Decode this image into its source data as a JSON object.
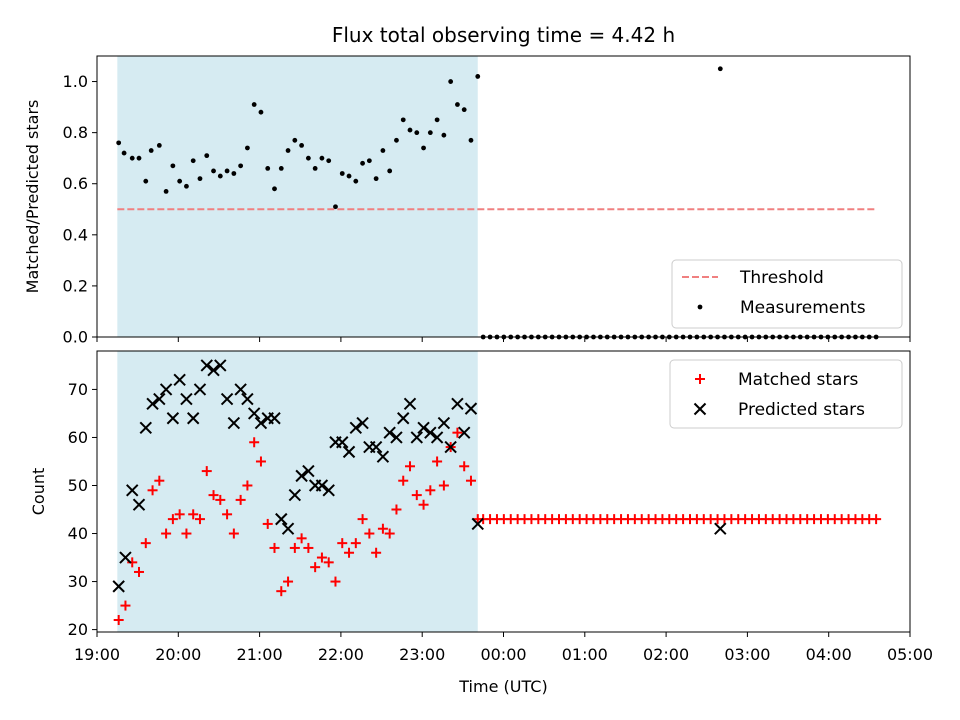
{
  "chart_data": [
    {
      "type": "scatter",
      "title": "Flux total observing time = 4.42 h",
      "xlabel": "",
      "ylabel": "Matched/Predicted stars",
      "xlim": [
        "19:00",
        "05:00"
      ],
      "ylim": [
        0,
        1.1
      ],
      "yticks": [
        "0.0",
        "0.2",
        "0.4",
        "0.6",
        "0.8",
        "1.0"
      ],
      "shaded_region": {
        "start": "19:15",
        "end": "23:41",
        "color": "#add8e6"
      },
      "legend_position": "lower-right",
      "series": [
        {
          "name": "Threshold",
          "style": "dashed-line",
          "color": "#f08080",
          "x": [
            "19:15",
            "04:35"
          ],
          "y": [
            0.5,
            0.5
          ]
        },
        {
          "name": "Measurements",
          "style": "dot",
          "color": "#000000",
          "x": [
            "19:16",
            "19:20",
            "19:26",
            "19:31",
            "19:36",
            "19:40",
            "19:46",
            "19:51",
            "19:56",
            "20:01",
            "20:06",
            "20:11",
            "20:16",
            "20:21",
            "20:26",
            "20:31",
            "20:36",
            "20:41",
            "20:46",
            "20:51",
            "20:56",
            "21:01",
            "21:06",
            "21:11",
            "21:16",
            "21:21",
            "21:26",
            "21:31",
            "21:36",
            "21:41",
            "21:46",
            "21:51",
            "21:56",
            "22:01",
            "22:06",
            "22:11",
            "22:16",
            "22:21",
            "22:26",
            "22:31",
            "22:36",
            "22:41",
            "22:46",
            "22:51",
            "22:56",
            "23:01",
            "23:06",
            "23:11",
            "23:16",
            "23:21",
            "23:26",
            "23:31",
            "23:36",
            "23:41",
            "02:40"
          ],
          "y": [
            0.76,
            0.72,
            0.7,
            0.7,
            0.61,
            0.73,
            0.75,
            0.57,
            0.67,
            0.61,
            0.59,
            0.69,
            0.62,
            0.71,
            0.65,
            0.63,
            0.65,
            0.64,
            0.67,
            0.74,
            0.91,
            0.88,
            0.66,
            0.58,
            0.66,
            0.73,
            0.77,
            0.75,
            0.7,
            0.66,
            0.7,
            0.69,
            0.51,
            0.64,
            0.63,
            0.61,
            0.68,
            0.69,
            0.62,
            0.73,
            0.65,
            0.77,
            0.85,
            0.81,
            0.8,
            0.74,
            0.8,
            0.85,
            0.79,
            1.0,
            0.91,
            0.89,
            0.77,
            1.02,
            1.05
          ]
        },
        {
          "name": "zero-measurements",
          "style": "dot",
          "color": "#000000",
          "x_range": [
            "23:45",
            "04:35"
          ],
          "count": 58,
          "y_value": 0.0
        }
      ]
    },
    {
      "type": "scatter",
      "title": "",
      "xlabel": "Time (UTC)",
      "ylabel": "Count",
      "xlim": [
        "19:00",
        "05:00"
      ],
      "ylim": [
        19.5,
        78
      ],
      "yticks": [
        "20",
        "30",
        "40",
        "50",
        "60",
        "70"
      ],
      "xticks": [
        "19:00",
        "20:00",
        "21:00",
        "22:00",
        "23:00",
        "00:00",
        "01:00",
        "02:00",
        "03:00",
        "04:00",
        "05:00"
      ],
      "shaded_region": {
        "start": "19:15",
        "end": "23:41",
        "color": "#add8e6"
      },
      "legend_position": "upper-right",
      "series": [
        {
          "name": "Matched stars",
          "marker": "plus",
          "color": "#ff0000",
          "x": [
            "19:16",
            "19:21",
            "19:26",
            "19:31",
            "19:36",
            "19:41",
            "19:46",
            "19:51",
            "19:56",
            "20:01",
            "20:06",
            "20:11",
            "20:16",
            "20:21",
            "20:26",
            "20:31",
            "20:36",
            "20:41",
            "20:46",
            "20:51",
            "20:56",
            "21:01",
            "21:06",
            "21:11",
            "21:16",
            "21:21",
            "21:26",
            "21:31",
            "21:36",
            "21:41",
            "21:46",
            "21:51",
            "21:56",
            "22:01",
            "22:06",
            "22:11",
            "22:16",
            "22:21",
            "22:26",
            "22:31",
            "22:36",
            "22:41",
            "22:46",
            "22:51",
            "22:56",
            "23:01",
            "23:06",
            "23:11",
            "23:16",
            "23:21",
            "23:26",
            "23:31",
            "23:36",
            "23:41"
          ],
          "y": [
            22,
            25,
            34,
            32,
            38,
            49,
            51,
            40,
            43,
            44,
            40,
            44,
            43,
            53,
            48,
            47,
            44,
            40,
            47,
            50,
            59,
            55,
            42,
            37,
            28,
            30,
            37,
            39,
            37,
            33,
            35,
            34,
            30,
            38,
            36,
            38,
            43,
            40,
            36,
            41,
            40,
            45,
            51,
            54,
            48,
            46,
            49,
            55,
            50,
            58,
            61,
            54,
            51,
            43
          ],
          "flat_segment": {
            "x_range": [
              "23:45",
              "04:35"
            ],
            "count": 58,
            "y_value": 43
          }
        },
        {
          "name": "Predicted stars",
          "marker": "x",
          "color": "#000000",
          "x": [
            "19:16",
            "19:21",
            "19:26",
            "19:31",
            "19:36",
            "19:41",
            "19:46",
            "19:51",
            "19:56",
            "20:01",
            "20:06",
            "20:11",
            "20:16",
            "20:21",
            "20:26",
            "20:31",
            "20:36",
            "20:41",
            "20:46",
            "20:51",
            "20:56",
            "21:01",
            "21:06",
            "21:11",
            "21:16",
            "21:21",
            "21:26",
            "21:31",
            "21:36",
            "21:41",
            "21:46",
            "21:51",
            "21:56",
            "22:01",
            "22:06",
            "22:11",
            "22:16",
            "22:21",
            "22:26",
            "22:31",
            "22:36",
            "22:41",
            "22:46",
            "22:51",
            "22:56",
            "23:01",
            "23:06",
            "23:11",
            "23:16",
            "23:21",
            "23:26",
            "23:31",
            "23:36",
            "23:41",
            "02:40"
          ],
          "y": [
            29,
            35,
            49,
            46,
            62,
            67,
            68,
            70,
            64,
            72,
            68,
            64,
            70,
            75,
            74,
            75,
            68,
            63,
            70,
            68,
            65,
            63,
            64,
            64,
            43,
            41,
            48,
            52,
            53,
            50,
            50,
            49,
            59,
            59,
            57,
            62,
            63,
            58,
            58,
            56,
            61,
            60,
            64,
            67,
            60,
            62,
            61,
            60,
            63,
            58,
            67,
            61,
            66,
            42,
            41
          ]
        }
      ]
    }
  ]
}
